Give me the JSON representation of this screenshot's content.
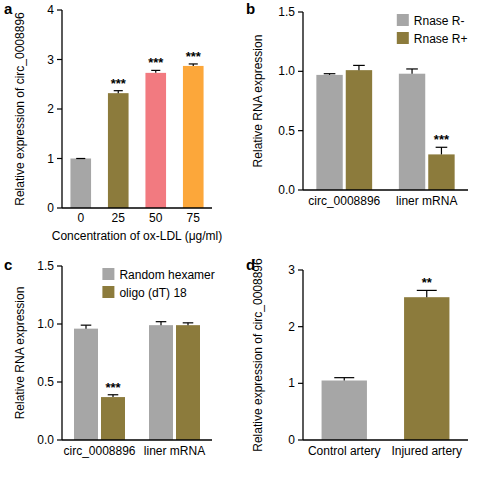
{
  "chart_data": [
    {
      "type": "bar",
      "title": "a",
      "categories": [
        "0",
        "25",
        "50",
        "75"
      ],
      "values": [
        1,
        2.32,
        2.73,
        2.87
      ],
      "errors": [
        0,
        0.05,
        0.05,
        0.04
      ],
      "significance": [
        null,
        "***",
        "***",
        "***"
      ],
      "colors": [
        "#a6a6a6",
        "#8c7b3c",
        "#f27a80",
        "#fca73a"
      ],
      "x_label": "Concentration of ox-LDL (μg/ml)",
      "y_label": "Relative expression of circ_0008896",
      "ylim": [
        0,
        4
      ],
      "yticks": [
        0,
        1,
        2,
        3,
        4
      ],
      "grid": false
    },
    {
      "type": "bar",
      "title": "b",
      "categories": [
        "circ_0008896",
        "liner mRNA"
      ],
      "series": [
        {
          "name": "Rnase R-",
          "color": "#a6a6a6",
          "values": [
            0.97,
            0.98
          ],
          "errors": [
            0.01,
            0.04
          ],
          "significance": [
            null,
            null
          ]
        },
        {
          "name": "Rnase R+",
          "color": "#8c7b3c",
          "values": [
            1.01,
            0.3
          ],
          "errors": [
            0.04,
            0.06
          ],
          "significance": [
            null,
            "***"
          ]
        }
      ],
      "y_label": "Relative RNA expression",
      "ylim": [
        0,
        1.5
      ],
      "yticks": [
        {
          "value": 0,
          "label": "0.0"
        },
        0.5,
        {
          "value": 1,
          "label": "1.0"
        },
        1.5
      ],
      "legend": "top-right",
      "grid": false
    },
    {
      "type": "bar",
      "title": "c",
      "categories": [
        "circ_0008896",
        "liner mRNA"
      ],
      "series": [
        {
          "name": "Random hexamer",
          "color": "#a6a6a6",
          "values": [
            0.96,
            0.99
          ],
          "errors": [
            0.03,
            0.03
          ],
          "significance": [
            null,
            null
          ]
        },
        {
          "name": "oligo (dT) 18",
          "color": "#8c7b3c",
          "values": [
            0.37,
            0.99
          ],
          "errors": [
            0.02,
            0.02
          ],
          "significance": [
            "***",
            null
          ]
        }
      ],
      "y_label": "Relative RNA expression",
      "ylim": [
        0,
        1.5
      ],
      "yticks": [
        {
          "value": 0,
          "label": "0.0"
        },
        0.5,
        {
          "value": 1,
          "label": "1.0"
        },
        1.5
      ],
      "legend": "top-right",
      "grid": false
    },
    {
      "type": "bar",
      "title": "d",
      "categories": [
        "Control artery",
        "Injured artery"
      ],
      "values": [
        1.05,
        2.52
      ],
      "errors": [
        0.05,
        0.12
      ],
      "significance": [
        null,
        "**"
      ],
      "colors": [
        "#a6a6a6",
        "#8c7b3c"
      ],
      "y_label": "Relative expression of circ_0008896",
      "ylim": [
        0,
        3
      ],
      "yticks": [
        0,
        1,
        2,
        3
      ],
      "grid": false
    }
  ]
}
